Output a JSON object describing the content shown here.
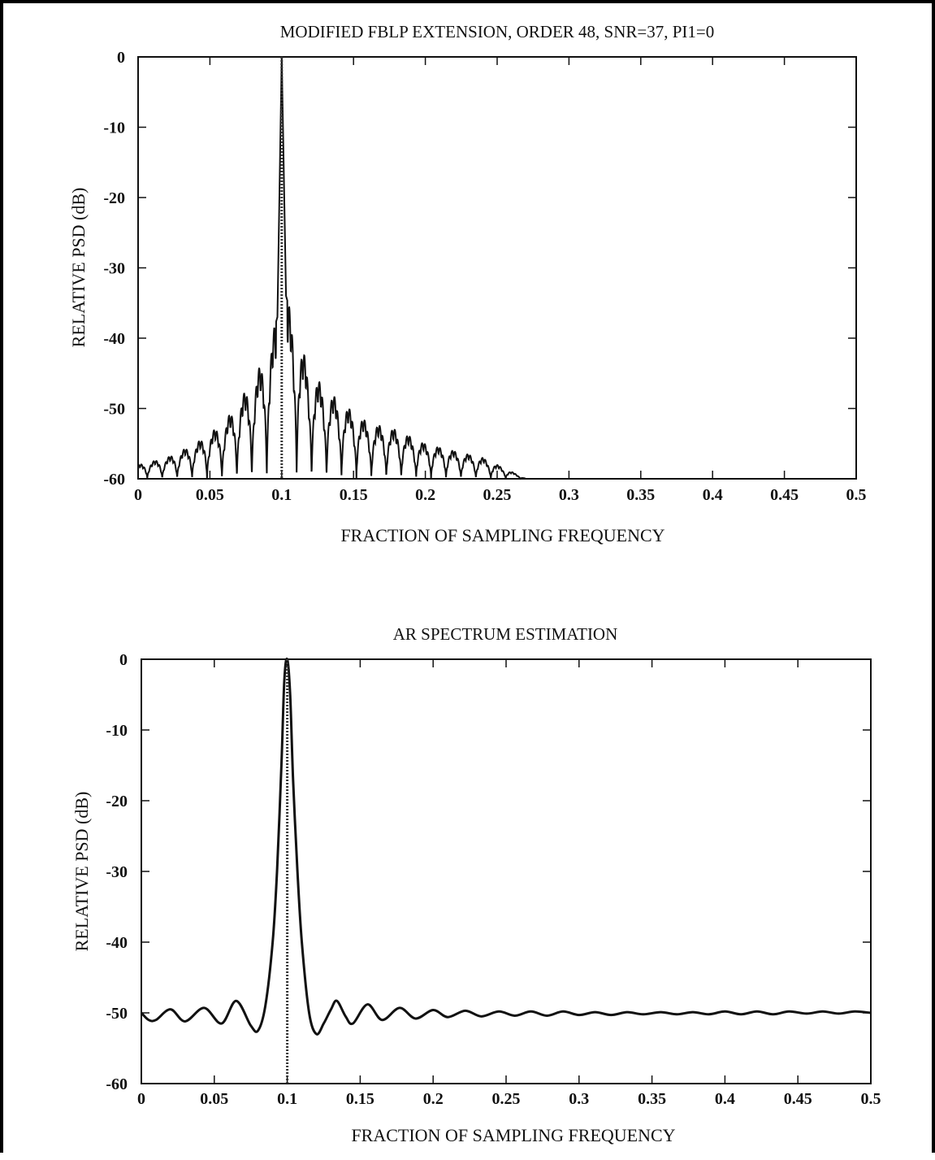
{
  "chart_data": [
    {
      "type": "line",
      "title": "MODIFIED FBLP EXTENSION, ORDER 48, SNR=37, PI1=0",
      "xlabel": "FRACTION OF SAMPLING FREQUENCY",
      "ylabel": "RELATIVE PSD (dB)",
      "xlim": [
        0,
        0.5
      ],
      "ylim": [
        -60,
        0
      ],
      "xticks": [
        0,
        0.05,
        0.1,
        0.15,
        0.2,
        0.25,
        0.3,
        0.35,
        0.4,
        0.45,
        0.5
      ],
      "xtick_labels": [
        "0",
        "0.05",
        "0.1",
        "0.15",
        "0.2",
        "0.25",
        "0.3",
        "0.35",
        "0.4",
        "0.45",
        "0.5"
      ],
      "yticks": [
        0,
        -10,
        -20,
        -30,
        -40,
        -50,
        -60
      ],
      "ytick_labels": [
        "0",
        "-10",
        "-20",
        "-30",
        "-40",
        "-50",
        "-60"
      ],
      "grid": false,
      "series": [
        {
          "style": "solid",
          "color": "#111111",
          "description_points": {
            "x": [
              0,
              0.02,
              0.04,
              0.06,
              0.08,
              0.09,
              0.097,
              0.1,
              0.103,
              0.11,
              0.12,
              0.14,
              0.16,
              0.18,
              0.2,
              0.22,
              0.24,
              0.26,
              0.27,
              0.3,
              0.35,
              0.4,
              0.45,
              0.5
            ],
            "y": [
              -58,
              -57,
              -55,
              -52,
              -46,
              -42,
              -37,
              0,
              -34,
              -39,
              -45,
              -49,
              -52,
              -53,
              -55,
              -56,
              -57,
              -59,
              -60,
              -60,
              -60,
              -60,
              -60,
              -60
            ]
          }
        },
        {
          "style": "dotted",
          "color": "#333333",
          "x": [
            0.1,
            0.1
          ],
          "y": [
            0,
            -60
          ]
        }
      ]
    },
    {
      "type": "line",
      "title": "AR SPECTRUM ESTIMATION",
      "xlabel": "FRACTION OF SAMPLING FREQUENCY",
      "ylabel": "RELATIVE PSD (dB)",
      "xlim": [
        0,
        0.5
      ],
      "ylim": [
        -60,
        0
      ],
      "xticks": [
        0,
        0.05,
        0.1,
        0.15,
        0.2,
        0.25,
        0.3,
        0.35,
        0.4,
        0.45,
        0.5
      ],
      "xtick_labels": [
        "0",
        "0.05",
        "0.1",
        "0.15",
        "0.2",
        "0.25",
        "0.3",
        "0.35",
        "0.4",
        "0.45",
        "0.5"
      ],
      "yticks": [
        0,
        -10,
        -20,
        -30,
        -40,
        -50,
        -60
      ],
      "ytick_labels": [
        "0",
        "-10",
        "-20",
        "-30",
        "-40",
        "-50",
        "-60"
      ],
      "grid": false,
      "series": [
        {
          "style": "solid",
          "color": "#111111",
          "x": [
            0,
            0.005,
            0.01,
            0.02,
            0.03,
            0.043,
            0.055,
            0.065,
            0.075,
            0.08,
            0.085,
            0.09,
            0.093,
            0.096,
            0.098,
            0.1,
            0.102,
            0.104,
            0.107,
            0.11,
            0.115,
            0.12,
            0.125,
            0.13,
            0.134,
            0.14,
            0.145,
            0.155,
            0.165,
            0.177,
            0.188,
            0.2,
            0.21,
            0.222,
            0.233,
            0.245,
            0.256,
            0.267,
            0.278,
            0.289,
            0.3,
            0.311,
            0.322,
            0.333,
            0.344,
            0.356,
            0.367,
            0.378,
            0.389,
            0.4,
            0.411,
            0.422,
            0.433,
            0.444,
            0.456,
            0.467,
            0.478,
            0.489,
            0.5
          ],
          "y": [
            -50,
            -51,
            -51,
            -49.5,
            -51.2,
            -49.3,
            -51.5,
            -48.3,
            -51.8,
            -52.5,
            -49,
            -40,
            -30,
            -15,
            -3,
            0,
            -5,
            -17,
            -30,
            -40,
            -50,
            -53,
            -51.5,
            -49.5,
            -48.3,
            -50.5,
            -51.5,
            -48.8,
            -51,
            -49.3,
            -50.8,
            -49.6,
            -50.6,
            -49.7,
            -50.5,
            -49.8,
            -50.4,
            -49.8,
            -50.4,
            -49.8,
            -50.3,
            -49.9,
            -50.3,
            -49.9,
            -50.2,
            -49.9,
            -50.2,
            -49.9,
            -50.2,
            -49.8,
            -50.2,
            -49.8,
            -50.2,
            -49.8,
            -50.1,
            -49.8,
            -50.1,
            -49.8,
            -50
          ]
        },
        {
          "style": "dotted",
          "color": "#333333",
          "x": [
            0.1,
            0.1
          ],
          "y": [
            0,
            -60
          ]
        }
      ]
    }
  ]
}
